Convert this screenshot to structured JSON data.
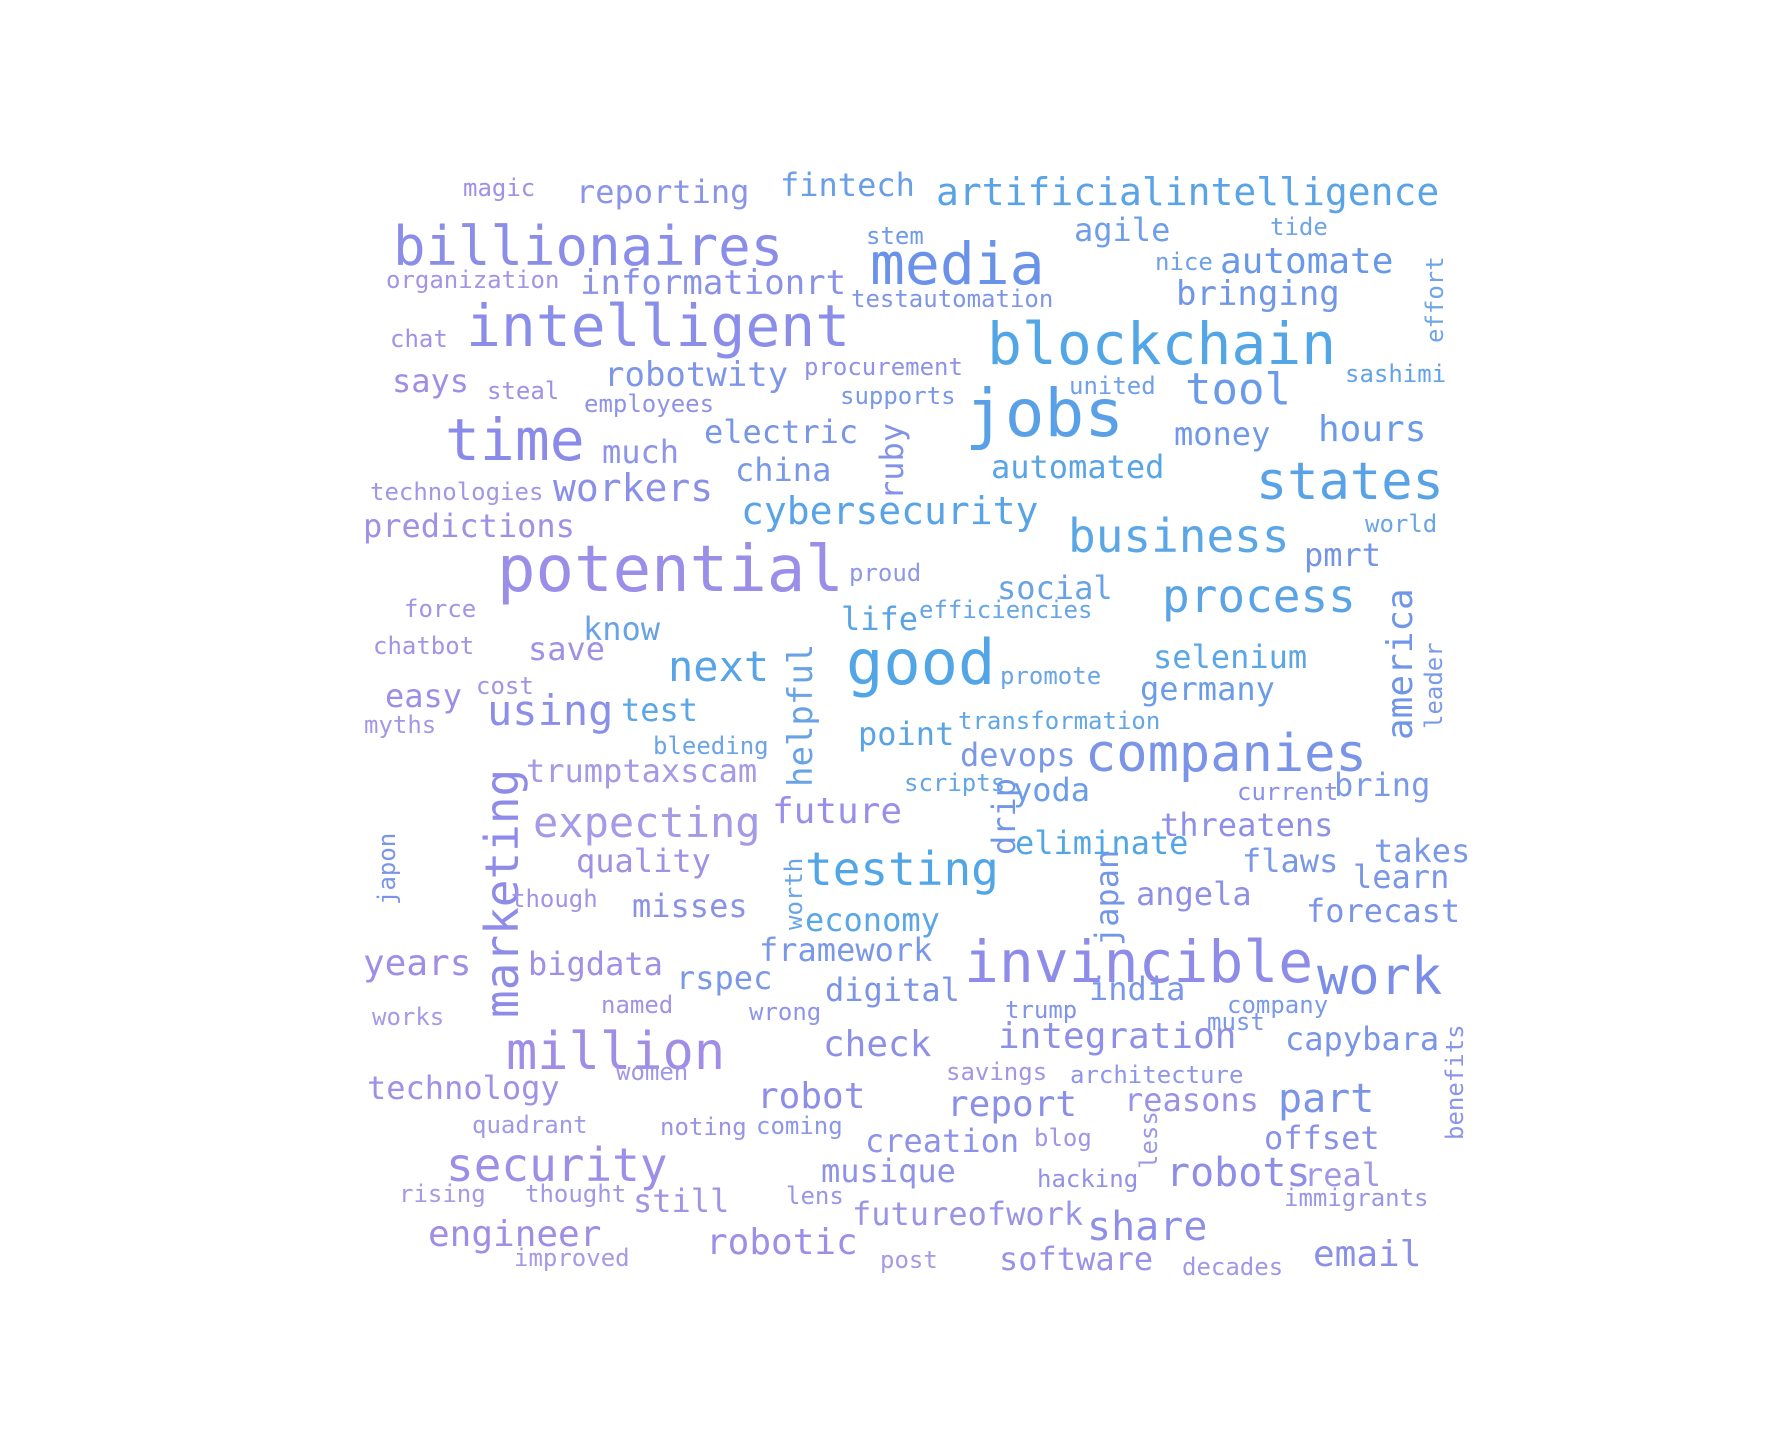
{
  "palette": {
    "blue": "#4aa3e6",
    "sky": "#5aa0e8",
    "periwinkle": "#7b8fe8",
    "lavender": "#9a8ee8",
    "violet": "#a48fe6"
  },
  "words": [
    {
      "text": "magic",
      "color": "#a090e6"
    },
    {
      "text": "reporting",
      "color": "#8a94e8"
    },
    {
      "text": "fintech",
      "color": "#6a9ee8"
    },
    {
      "text": "artificialintelligence",
      "color": "#5aa3e6"
    },
    {
      "text": "billionaires",
      "color": "#8a8ee8"
    },
    {
      "text": "stem",
      "color": "#6f9ae8"
    },
    {
      "text": "tide",
      "color": "#6fa4e6"
    },
    {
      "text": "media",
      "color": "#6a92e8"
    },
    {
      "text": "agile",
      "color": "#6f9ee8"
    },
    {
      "text": "organization",
      "color": "#a494e6"
    },
    {
      "text": "informationrt",
      "color": "#8a92e8"
    },
    {
      "text": "nice",
      "color": "#6fa0e6"
    },
    {
      "text": "automate",
      "color": "#6a98e8"
    },
    {
      "text": "effort",
      "color": "#6fa4e6"
    },
    {
      "text": "testautomation",
      "color": "#7f96e8"
    },
    {
      "text": "bringing",
      "color": "#7096e8"
    },
    {
      "text": "intelligent",
      "color": "#8a8ee8"
    },
    {
      "text": "chat",
      "color": "#a092e6"
    },
    {
      "text": "blockchain",
      "color": "#52a6e6"
    },
    {
      "text": "procurement",
      "color": "#8f92e8"
    },
    {
      "text": "robotwity",
      "color": "#7e96e8"
    },
    {
      "text": "sashimi",
      "color": "#62a2e6"
    },
    {
      "text": "says",
      "color": "#a08ee6"
    },
    {
      "text": "steal",
      "color": "#a090e6"
    },
    {
      "text": "united",
      "color": "#6fa0e8"
    },
    {
      "text": "tool",
      "color": "#6a9ae8"
    },
    {
      "text": "employees",
      "color": "#8f92e8"
    },
    {
      "text": "supports",
      "color": "#7898e8"
    },
    {
      "text": "jobs",
      "color": "#5aa0e6"
    },
    {
      "text": "time",
      "color": "#8a8ae8"
    },
    {
      "text": "hours",
      "color": "#6a9ae8"
    },
    {
      "text": "electric",
      "color": "#7896e8"
    },
    {
      "text": "money",
      "color": "#7098e8"
    },
    {
      "text": "much",
      "color": "#8e94e8"
    },
    {
      "text": "ruby",
      "color": "#8292e8"
    },
    {
      "text": "automated",
      "color": "#58a4e6"
    },
    {
      "text": "china",
      "color": "#7a98e8"
    },
    {
      "text": "states",
      "color": "#5aa2e6"
    },
    {
      "text": "technologies",
      "color": "#a098e6"
    },
    {
      "text": "workers",
      "color": "#8a90e8"
    },
    {
      "text": "cybersecurity",
      "color": "#58a4e6"
    },
    {
      "text": "predictions",
      "color": "#a090e6"
    },
    {
      "text": "world",
      "color": "#6aa4e6"
    },
    {
      "text": "business",
      "color": "#5aa6e6"
    },
    {
      "text": "pmrt",
      "color": "#7494e8"
    },
    {
      "text": "potential",
      "color": "#9a8ee8"
    },
    {
      "text": "proud",
      "color": "#8e98e8"
    },
    {
      "text": "social",
      "color": "#6aa2e6"
    },
    {
      "text": "process",
      "color": "#5aa4e6"
    },
    {
      "text": "force",
      "color": "#a494e6"
    },
    {
      "text": "efficiencies",
      "color": "#66a6e6"
    },
    {
      "text": "life",
      "color": "#5aa4e6"
    },
    {
      "text": "america",
      "color": "#7096e8"
    },
    {
      "text": "chatbot",
      "color": "#a494e6"
    },
    {
      "text": "know",
      "color": "#6aa2e6"
    },
    {
      "text": "save",
      "color": "#a090e6"
    },
    {
      "text": "good",
      "color": "#52a6e6"
    },
    {
      "text": "selenium",
      "color": "#5aa6e6"
    },
    {
      "text": "next",
      "color": "#58a4e6"
    },
    {
      "text": "leader",
      "color": "#7a9ae8"
    },
    {
      "text": "cost",
      "color": "#a094e6"
    },
    {
      "text": "promote",
      "color": "#6aa4e6"
    },
    {
      "text": "easy",
      "color": "#9c8ee8"
    },
    {
      "text": "germany",
      "color": "#6a9ce8"
    },
    {
      "text": "helpful",
      "color": "#6aa2e6"
    },
    {
      "text": "myths",
      "color": "#a498e6"
    },
    {
      "text": "using",
      "color": "#8a90e8"
    },
    {
      "text": "test",
      "color": "#5aa6e6"
    },
    {
      "text": "transformation",
      "color": "#62a6e6"
    },
    {
      "text": "point",
      "color": "#5aa4e6"
    },
    {
      "text": "companies",
      "color": "#7a94e8"
    },
    {
      "text": "bleeding",
      "color": "#6aa4e6"
    },
    {
      "text": "devops",
      "color": "#7a98e8"
    },
    {
      "text": "marketing",
      "color": "#8e8ce8"
    },
    {
      "text": "scripts",
      "color": "#62a6e6"
    },
    {
      "text": "trumptaxscam",
      "color": "#a49ae6"
    },
    {
      "text": "current",
      "color": "#8a92e8"
    },
    {
      "text": "yoda",
      "color": "#6a9ce8"
    },
    {
      "text": "bring",
      "color": "#7a9ae8"
    },
    {
      "text": "japon",
      "color": "#7a94e8"
    },
    {
      "text": "expecting",
      "color": "#a49ae6"
    },
    {
      "text": "future",
      "color": "#9890e8"
    },
    {
      "text": "eliminate",
      "color": "#52a6e6"
    },
    {
      "text": "threatens",
      "color": "#8e90e8"
    },
    {
      "text": "drip",
      "color": "#7296e8"
    },
    {
      "text": "japan",
      "color": "#7296e8"
    },
    {
      "text": "takes",
      "color": "#7a98e8"
    },
    {
      "text": "quality",
      "color": "#a090e6"
    },
    {
      "text": "worth",
      "color": "#6aa4e6"
    },
    {
      "text": "testing",
      "color": "#52a6e6"
    },
    {
      "text": "flaws",
      "color": "#7a98e8"
    },
    {
      "text": "learn",
      "color": "#7a96e8"
    },
    {
      "text": "angela",
      "color": "#8e90e8"
    },
    {
      "text": "though",
      "color": "#a094e6"
    },
    {
      "text": "economy",
      "color": "#5aa6e6"
    },
    {
      "text": "misses",
      "color": "#8a92e8"
    },
    {
      "text": "forecast",
      "color": "#7a94e8"
    },
    {
      "text": "framework",
      "color": "#7a98e8"
    },
    {
      "text": "invincible",
      "color": "#8e8ce8"
    },
    {
      "text": "years",
      "color": "#a08ee6"
    },
    {
      "text": "bigdata",
      "color": "#a090e6"
    },
    {
      "text": "work",
      "color": "#7a8ee8"
    },
    {
      "text": "rspec",
      "color": "#7a98e8"
    },
    {
      "text": "digital",
      "color": "#7a94e8"
    },
    {
      "text": "india",
      "color": "#7a96e8"
    },
    {
      "text": "company",
      "color": "#7a9ae8"
    },
    {
      "text": "works",
      "color": "#a49ae6"
    },
    {
      "text": "named",
      "color": "#a094e6"
    },
    {
      "text": "wrong",
      "color": "#8e94e8"
    },
    {
      "text": "trump",
      "color": "#8294e8"
    },
    {
      "text": "must",
      "color": "#7a96e8"
    },
    {
      "text": "million",
      "color": "#a08ee6"
    },
    {
      "text": "check",
      "color": "#8e90e8"
    },
    {
      "text": "integration",
      "color": "#8e90e8"
    },
    {
      "text": "capybara",
      "color": "#7a94e8"
    },
    {
      "text": "benefits",
      "color": "#8a94e8"
    },
    {
      "text": "women",
      "color": "#a098e6"
    },
    {
      "text": "savings",
      "color": "#a096e6"
    },
    {
      "text": "architecture",
      "color": "#8e96e8"
    },
    {
      "text": "technology",
      "color": "#a090e6"
    },
    {
      "text": "robot",
      "color": "#8e8ee8"
    },
    {
      "text": "report",
      "color": "#8a90e8"
    },
    {
      "text": "part",
      "color": "#7a94e8"
    },
    {
      "text": "reasons",
      "color": "#9a92e6"
    },
    {
      "text": "quadrant",
      "color": "#a09ae6"
    },
    {
      "text": "noting",
      "color": "#9a94e6"
    },
    {
      "text": "coming",
      "color": "#8e96e8"
    },
    {
      "text": "less",
      "color": "#9a98e6"
    },
    {
      "text": "security",
      "color": "#9e8ee8"
    },
    {
      "text": "creation",
      "color": "#8e92e8"
    },
    {
      "text": "blog",
      "color": "#a096e6"
    },
    {
      "text": "offset",
      "color": "#8a92e8"
    },
    {
      "text": "musique",
      "color": "#8e92e8"
    },
    {
      "text": "robots",
      "color": "#8e8ee8"
    },
    {
      "text": "hacking",
      "color": "#9290e8"
    },
    {
      "text": "real",
      "color": "#a098e6"
    },
    {
      "text": "rising",
      "color": "#a49ae6"
    },
    {
      "text": "thought",
      "color": "#a098e6"
    },
    {
      "text": "still",
      "color": "#a094e6"
    },
    {
      "text": "lens",
      "color": "#9a96e6"
    },
    {
      "text": "immigrants",
      "color": "#9a96e6"
    },
    {
      "text": "futureofwork",
      "color": "#9a94e6"
    },
    {
      "text": "engineer",
      "color": "#a08ee6"
    },
    {
      "text": "share",
      "color": "#8e90e8"
    },
    {
      "text": "robotic",
      "color": "#9e8ee8"
    },
    {
      "text": "email",
      "color": "#8a90e8"
    },
    {
      "text": "improved",
      "color": "#a49ae6"
    },
    {
      "text": "post",
      "color": "#a49ae6"
    },
    {
      "text": "software",
      "color": "#9a92e8"
    },
    {
      "text": "decades",
      "color": "#a098e6"
    }
  ]
}
